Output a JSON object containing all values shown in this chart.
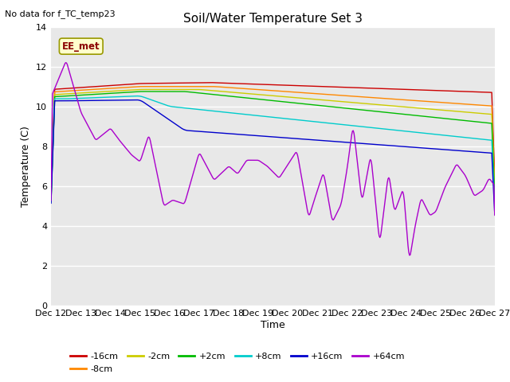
{
  "title": "Soil/Water Temperature Set 3",
  "xlabel": "Time",
  "ylabel": "Temperature (C)",
  "no_data_label": "No data for f_TC_temp23",
  "annotation_label": "EE_met",
  "ylim": [
    0,
    14
  ],
  "yticks": [
    0,
    2,
    4,
    6,
    8,
    10,
    12,
    14
  ],
  "xtick_labels": [
    "Dec 12",
    "Dec 13",
    "Dec 14",
    "Dec 15",
    "Dec 16",
    "Dec 17",
    "Dec 18",
    "Dec 19",
    "Dec 20",
    "Dec 21",
    "Dec 22",
    "Dec 23",
    "Dec 24",
    "Dec 25",
    "Dec 26",
    "Dec 27"
  ],
  "series_colors": {
    "-16cm": "#cc0000",
    "-8cm": "#ff8800",
    "-2cm": "#cccc00",
    "+2cm": "#00bb00",
    "+8cm": "#00cccc",
    "+16cm": "#0000cc",
    "+64cm": "#aa00cc"
  },
  "background_color": "#ffffff",
  "plot_bg_color": "#e8e8e8",
  "grid_color": "#ffffff",
  "title_fontsize": 11,
  "axis_fontsize": 9,
  "tick_fontsize": 8,
  "legend_fontsize": 8
}
